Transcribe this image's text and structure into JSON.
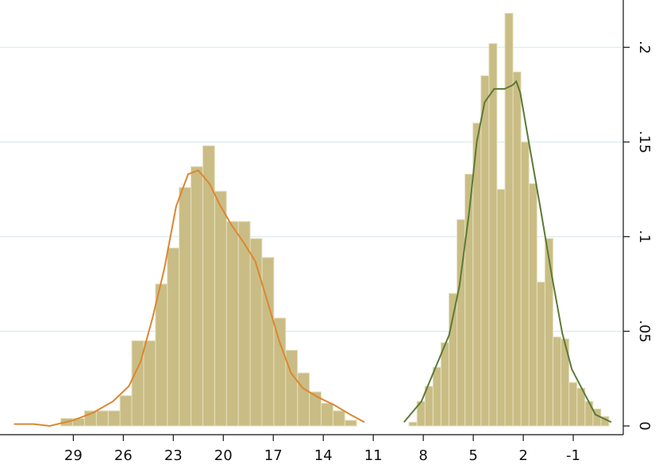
{
  "chart_data": {
    "type": "histogram",
    "x_reversed": true,
    "y_axis_side": "right",
    "grid": true,
    "grid_color": "#dfeef3",
    "xlim": [
      -4,
      33.4
    ],
    "xticks": [
      -1,
      2,
      5,
      8,
      11,
      14,
      17,
      20,
      23,
      26,
      29
    ],
    "ylim": [
      0,
      0.225
    ],
    "yticks": [
      0,
      {
        "value": 0.05,
        "label": ".05"
      },
      {
        "value": 0.1,
        "label": ".1"
      },
      {
        "value": 0.15,
        "label": ".15"
      },
      {
        "value": 0.2,
        "label": ".2"
      }
    ],
    "histograms": [
      {
        "color": "#c9bd85",
        "bins": [
          -3.14,
          -2.66,
          -2.18,
          -1.7,
          -1.22,
          -0.74,
          -0.26,
          0.22,
          0.7,
          1.18,
          1.66,
          2.14,
          2.62,
          3.1,
          3.58,
          4.06,
          4.54,
          5.02,
          5.5,
          5.98,
          6.46,
          6.94,
          7.42,
          7.9,
          8.38,
          8.86
        ],
        "values": [
          0.005,
          0.009,
          0.013,
          0.02,
          0.023,
          0.046,
          0.047,
          0.099,
          0.076,
          0.128,
          0.15,
          0.187,
          0.218,
          0.125,
          0.202,
          0.185,
          0.16,
          0.133,
          0.109,
          0.07,
          0.044,
          0.031,
          0.021,
          0.013,
          0.002
        ]
      },
      {
        "color": "#c9bd85",
        "bins": [
          12.0,
          12.71,
          13.42,
          14.13,
          14.84,
          15.55,
          16.26,
          16.97,
          17.68,
          18.39,
          19.1,
          19.81,
          20.52,
          21.23,
          21.94,
          22.65,
          23.36,
          24.07,
          24.78,
          25.49,
          26.2,
          26.91,
          27.62,
          28.33,
          29.04,
          29.75
        ],
        "values": [
          0.003,
          0.008,
          0.012,
          0.018,
          0.028,
          0.04,
          0.057,
          0.089,
          0.099,
          0.108,
          0.108,
          0.124,
          0.148,
          0.137,
          0.126,
          0.094,
          0.075,
          0.045,
          0.045,
          0.016,
          0.008,
          0.008,
          0.008,
          0.004,
          0.004
        ]
      }
    ],
    "curves": [
      {
        "color": "#5b7a36",
        "x": [
          -3.28,
          -2.33,
          -1.62,
          -0.91,
          -0.34,
          0.28,
          0.99,
          1.71,
          2.18,
          2.42,
          2.65,
          3.13,
          3.75,
          4.32,
          4.79,
          5.26,
          5.83,
          6.45,
          7.26,
          8.11,
          9.16
        ],
        "values": [
          0.002,
          0.006,
          0.018,
          0.03,
          0.049,
          0.079,
          0.116,
          0.152,
          0.176,
          0.182,
          0.18,
          0.178,
          0.178,
          0.171,
          0.15,
          0.112,
          0.074,
          0.048,
          0.031,
          0.013,
          0.002
        ]
      },
      {
        "color": "#dc8630",
        "x": [
          11.53,
          12.38,
          13.33,
          14.28,
          15.23,
          15.94,
          16.65,
          17.36,
          18.08,
          18.79,
          19.5,
          20.22,
          20.83,
          21.5,
          22.11,
          22.83,
          23.54,
          24.25,
          24.96,
          25.67,
          26.62,
          27.81,
          28.99,
          30.42,
          31.37,
          32.56
        ],
        "values": [
          0.002,
          0.006,
          0.011,
          0.015,
          0.02,
          0.028,
          0.045,
          0.066,
          0.087,
          0.097,
          0.106,
          0.117,
          0.128,
          0.135,
          0.133,
          0.116,
          0.083,
          0.057,
          0.034,
          0.021,
          0.013,
          0.007,
          0.003,
          0.0,
          0.001,
          0.001
        ]
      }
    ]
  }
}
